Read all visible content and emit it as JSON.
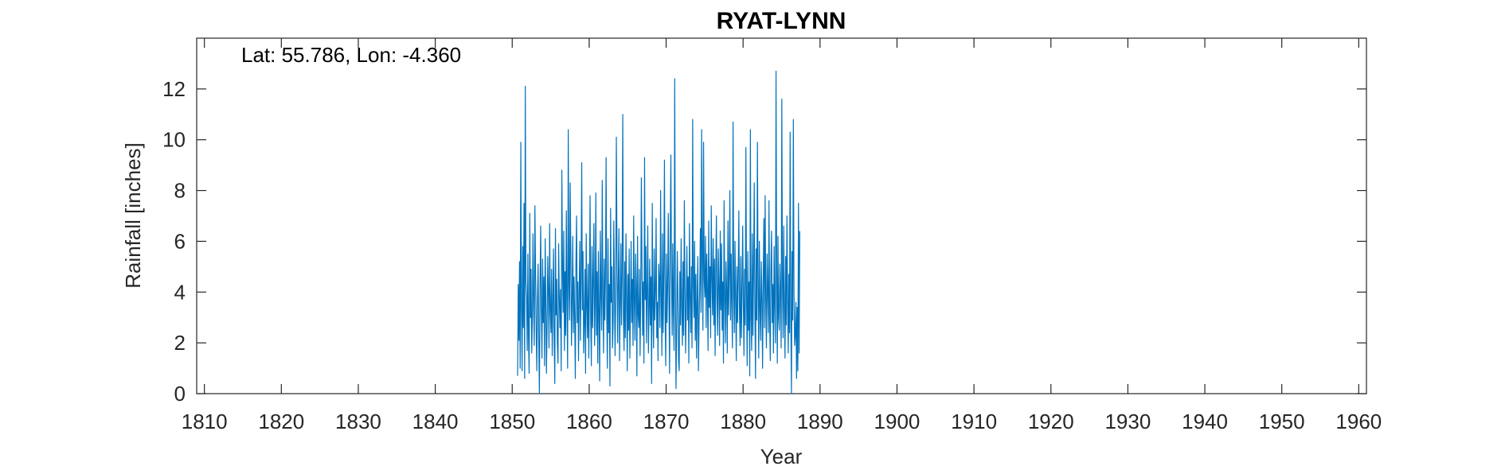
{
  "chart_data": {
    "type": "line",
    "title": "RYAT-LYNN",
    "annotation": "Lat: 55.786, Lon: -4.360",
    "xlabel": "Year",
    "ylabel": "Rainfall [inches]",
    "xlim": [
      1809,
      1961
    ],
    "ylim": [
      0,
      14
    ],
    "xticks": [
      1810,
      1820,
      1830,
      1840,
      1850,
      1860,
      1870,
      1880,
      1890,
      1900,
      1910,
      1920,
      1930,
      1940,
      1950,
      1960
    ],
    "yticks": [
      0,
      2,
      4,
      6,
      8,
      10,
      12
    ],
    "grid": false,
    "line_color": "#0072BD",
    "series": [
      {
        "x_start": 1850.7,
        "x_step_years": 0.08333,
        "values": [
          0.7,
          4.3,
          2.1,
          5.2,
          1.0,
          9.9,
          3.4,
          0.9,
          5.8,
          2.6,
          7.5,
          0.6,
          12.1,
          4.4,
          3.8,
          1.7,
          5.5,
          2.2,
          0.8,
          7.1,
          3.0,
          4.9,
          1.6,
          2.9,
          6.3,
          3.5,
          1.9,
          7.4,
          4.7,
          2.5,
          0.9,
          3.8,
          5.1,
          2.0,
          0.0,
          4.2,
          6.6,
          3.2,
          1.4,
          5.3,
          2.8,
          4.6,
          1.1,
          6.1,
          3.7,
          0.8,
          2.7,
          5.4,
          4.0,
          1.8,
          6.7,
          3.3,
          2.4,
          4.9,
          1.5,
          3.6,
          5.7,
          2.2,
          0.4,
          6.5,
          3.1,
          4.5,
          2.0,
          1.2,
          5.9,
          3.8,
          2.6,
          4.1,
          0.9,
          8.8,
          5.0,
          3.2,
          6.4,
          1.7,
          4.8,
          2.3,
          7.2,
          3.6,
          1.0,
          10.4,
          4.3,
          2.9,
          8.3,
          5.5,
          1.9,
          3.7,
          6.2,
          2.4,
          4.6,
          3.0,
          0.6,
          5.2,
          7.0,
          2.8,
          4.4,
          1.3,
          3.9,
          6.0,
          2.1,
          4.7,
          9.1,
          3.3,
          5.6,
          1.6,
          2.7,
          4.9,
          0.8,
          6.3,
          3.5,
          2.2,
          5.1,
          1.4,
          4.2,
          7.8,
          3.0,
          1.1,
          5.8,
          2.6,
          4.5,
          6.7,
          1.9,
          3.4,
          7.9,
          2.3,
          4.8,
          1.2,
          5.6,
          3.1,
          0.5,
          6.4,
          4.0,
          2.5,
          8.4,
          3.7,
          1.6,
          5.3,
          2.9,
          4.6,
          9.3,
          3.2,
          1.0,
          6.1,
          2.4,
          4.3,
          0.3,
          7.3,
          3.6,
          5.0,
          1.8,
          2.8,
          6.8,
          4.1,
          1.5,
          3.9,
          10.1,
          5.4,
          2.0,
          4.4,
          6.5,
          1.3,
          3.5,
          5.9,
          2.7,
          4.8,
          11.0,
          3.0,
          1.7,
          5.2,
          2.2,
          6.3,
          3.8,
          0.9,
          4.7,
          2.5,
          5.7,
          1.4,
          3.3,
          6.0,
          2.8,
          4.5,
          1.9,
          7.0,
          3.6,
          2.1,
          5.5,
          4.2,
          0.7,
          6.2,
          3.1,
          2.6,
          4.9,
          1.5,
          3.8,
          8.5,
          5.0,
          2.3,
          4.4,
          1.2,
          9.3,
          3.7,
          5.8,
          2.0,
          4.1,
          6.6,
          1.6,
          3.2,
          5.3,
          2.7,
          4.6,
          0.4,
          7.5,
          3.4,
          1.8,
          5.7,
          2.9,
          4.0,
          6.9,
          2.2,
          3.6,
          1.3,
          5.1,
          4.5,
          2.6,
          8.0,
          3.9,
          1.5,
          6.3,
          2.4,
          4.8,
          9.2,
          3.1,
          1.1,
          5.5,
          2.8,
          4.2,
          7.1,
          3.7,
          0.8,
          6.0,
          9.4,
          4.7,
          2.3,
          5.9,
          3.3,
          1.7,
          12.4,
          4.4,
          0.2,
          2.5,
          5.6,
          3.9,
          1.3,
          0.9,
          4.8,
          2.7,
          6.1,
          3.4,
          1.9,
          5.2,
          2.3,
          7.6,
          4.1,
          1.6,
          3.5,
          5.8,
          2.9,
          4.6,
          1.2,
          6.7,
          3.8,
          2.4,
          5.0,
          1.8,
          10.8,
          4.3,
          3.0,
          6.0,
          2.1,
          4.7,
          1.4,
          3.6,
          5.4,
          0.9,
          2.8,
          4.2,
          6.5,
          3.2,
          10.4,
          5.1,
          2.5,
          9.9,
          4.5,
          3.8,
          6.2,
          2.6,
          5.5,
          4.0,
          1.7,
          6.8,
          3.4,
          5.0,
          2.2,
          7.4,
          4.6,
          3.1,
          6.1,
          2.7,
          5.3,
          1.5,
          4.8,
          7.0,
          3.6,
          2.3,
          5.7,
          4.2,
          1.9,
          6.4,
          3.3,
          5.9,
          2.5,
          4.4,
          1.2,
          7.6,
          3.8,
          2.0,
          5.2,
          4.0,
          1.6,
          6.8,
          3.1,
          4.7,
          8.0,
          2.9,
          5.5,
          3.5,
          1.8,
          10.7,
          4.3,
          2.4,
          6.0,
          3.7,
          1.3,
          5.0,
          2.8,
          4.6,
          7.2,
          3.2,
          1.9,
          5.4,
          2.2,
          4.1,
          6.6,
          3.6,
          1.5,
          4.9,
          2.7,
          9.7,
          3.9,
          1.1,
          5.6,
          2.5,
          4.4,
          0.7,
          10.4,
          3.0,
          1.7,
          6.3,
          2.3,
          4.8,
          8.3,
          3.4,
          0.6,
          5.7,
          2.9,
          9.9,
          4.2,
          1.4,
          6.0,
          3.3,
          2.1,
          5.2,
          3.8,
          1.0,
          4.5,
          6.9,
          2.6,
          7.8,
          3.7,
          1.8,
          5.5,
          4.1,
          2.4,
          7.6,
          3.1,
          1.3,
          4.9,
          6.4,
          2.8,
          4.3,
          1.6,
          5.8,
          3.5,
          2.0,
          12.7,
          4.6,
          1.2,
          6.2,
          3.0,
          2.5,
          5.1,
          3.9,
          1.8,
          11.6,
          4.4,
          2.2,
          6.6,
          3.3,
          1.4,
          5.4,
          2.7,
          7.0,
          3.8,
          1.6,
          4.7,
          2.4,
          10.3,
          3.1,
          0.0,
          5.6,
          2.9,
          10.8,
          4.0,
          1.9,
          2.3,
          3.6,
          0.6,
          3.4,
          0.9,
          7.5,
          1.6,
          6.4
        ]
      }
    ]
  }
}
